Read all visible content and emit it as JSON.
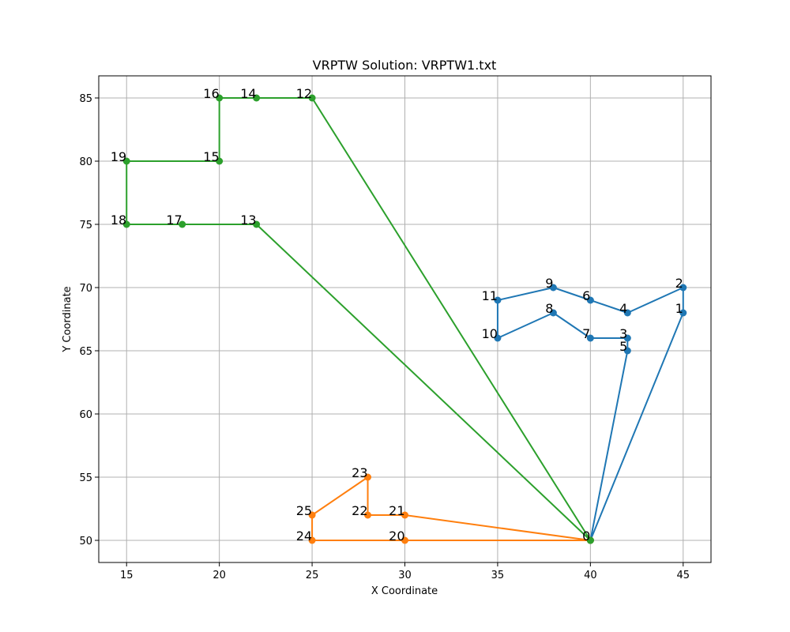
{
  "chart_data": {
    "type": "line",
    "title": "VRPTW Solution: VRPTW1.txt",
    "xlabel": "X Coordinate",
    "ylabel": "Y Coordinate",
    "xlim": [
      13.5,
      46.5
    ],
    "ylim": [
      48.25,
      86.75
    ],
    "xticks": [
      15,
      20,
      25,
      30,
      35,
      40,
      45
    ],
    "yticks": [
      50,
      55,
      60,
      65,
      70,
      75,
      80,
      85
    ],
    "grid": true,
    "nodes": [
      {
        "id": "0",
        "x": 40,
        "y": 50
      },
      {
        "id": "1",
        "x": 45,
        "y": 68
      },
      {
        "id": "2",
        "x": 45,
        "y": 70
      },
      {
        "id": "3",
        "x": 42,
        "y": 66
      },
      {
        "id": "4",
        "x": 42,
        "y": 68
      },
      {
        "id": "5",
        "x": 42,
        "y": 65
      },
      {
        "id": "6",
        "x": 40,
        "y": 69
      },
      {
        "id": "7",
        "x": 40,
        "y": 66
      },
      {
        "id": "8",
        "x": 38,
        "y": 68
      },
      {
        "id": "9",
        "x": 38,
        "y": 70
      },
      {
        "id": "10",
        "x": 35,
        "y": 66
      },
      {
        "id": "11",
        "x": 35,
        "y": 69
      },
      {
        "id": "12",
        "x": 25,
        "y": 85
      },
      {
        "id": "13",
        "x": 22,
        "y": 75
      },
      {
        "id": "14",
        "x": 22,
        "y": 85
      },
      {
        "id": "15",
        "x": 20,
        "y": 80
      },
      {
        "id": "16",
        "x": 20,
        "y": 85
      },
      {
        "id": "17",
        "x": 18,
        "y": 75
      },
      {
        "id": "18",
        "x": 15,
        "y": 75
      },
      {
        "id": "19",
        "x": 15,
        "y": 80
      },
      {
        "id": "20",
        "x": 30,
        "y": 50
      },
      {
        "id": "21",
        "x": 30,
        "y": 52
      },
      {
        "id": "22",
        "x": 28,
        "y": 52
      },
      {
        "id": "23",
        "x": 28,
        "y": 55
      },
      {
        "id": "24",
        "x": 25,
        "y": 50
      },
      {
        "id": "25",
        "x": 25,
        "y": 52
      }
    ],
    "series": [
      {
        "color": "#1f77b4",
        "route": [
          "0",
          "5",
          "3",
          "7",
          "8",
          "10",
          "11",
          "9",
          "6",
          "4",
          "2",
          "1",
          "0"
        ]
      },
      {
        "color": "#ff7f0e",
        "route": [
          "0",
          "21",
          "22",
          "23",
          "25",
          "24",
          "20",
          "0"
        ]
      },
      {
        "color": "#2ca02c",
        "route": [
          "0",
          "13",
          "17",
          "18",
          "19",
          "15",
          "16",
          "14",
          "12",
          "0"
        ]
      }
    ]
  }
}
